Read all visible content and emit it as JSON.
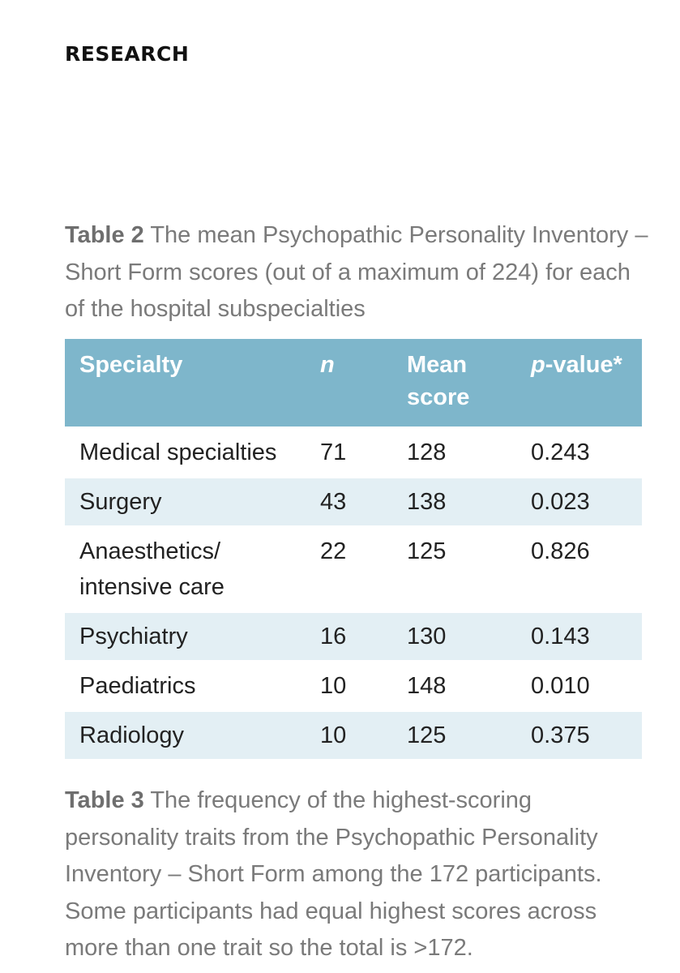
{
  "section_label": "RESEARCH",
  "table2": {
    "caption_label": "Table 2",
    "caption_text": " The mean Psychopathic Personality Inventory – Short Form scores (out of a maximum of 224) for each of the hospital subspecialties",
    "header": {
      "specialty": "Specialty",
      "n": "n",
      "mean_line1": "Mean",
      "mean_line2": "score",
      "p_italic": "p",
      "p_rest": "-value*"
    },
    "rows": [
      {
        "specialty": "Medical specialties",
        "specialty_line2": "",
        "n": "71",
        "mean": "128",
        "p": "0.243"
      },
      {
        "specialty": "Surgery",
        "specialty_line2": "",
        "n": "43",
        "mean": "138",
        "p": "0.023"
      },
      {
        "specialty": "Anaesthetics/",
        "specialty_line2": "intensive care",
        "n": "22",
        "mean": "125",
        "p": "0.826"
      },
      {
        "specialty": "Psychiatry",
        "specialty_line2": "",
        "n": "16",
        "mean": "130",
        "p": "0.143"
      },
      {
        "specialty": "Paediatrics",
        "specialty_line2": "",
        "n": "10",
        "mean": "148",
        "p": "0.010"
      },
      {
        "specialty": "Radiology",
        "specialty_line2": "",
        "n": "10",
        "mean": "125",
        "p": "0.375"
      }
    ]
  },
  "table3": {
    "caption_label": "Table 3",
    "caption_text": " The frequency of the highest-scoring personality traits from the Psychopathic Personality Inventory – Short Form among the 172 participants. Some participants had equal highest scores across more than one trait so the total is >172."
  },
  "colors": {
    "header_bg": "#7eb6cb",
    "row_shade": "#e3eff4",
    "caption_grey": "#7a7a7a"
  }
}
